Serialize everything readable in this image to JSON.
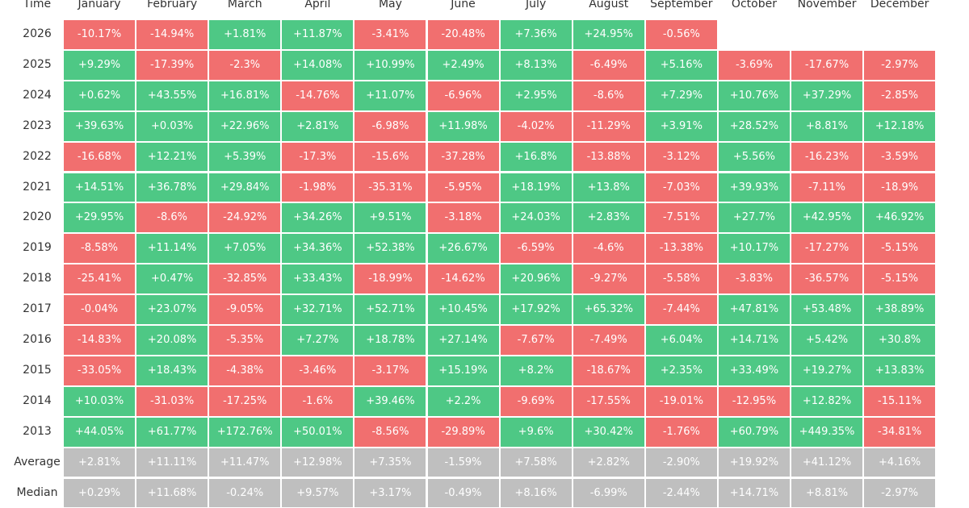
{
  "colors": {
    "positive": "#4ec885",
    "negative": "#f16f6f",
    "summary": "#bfbfbf"
  },
  "chart_data": {
    "type": "table",
    "row_header_label": "Time",
    "columns": [
      "January",
      "February",
      "March",
      "April",
      "May",
      "June",
      "July",
      "August",
      "September",
      "October",
      "November",
      "December"
    ],
    "rows": [
      {
        "label": "2026",
        "kind": "year",
        "values": [
          "-10.17%",
          "-14.94%",
          "+1.81%",
          "+11.87%",
          "-3.41%",
          "-20.48%",
          "+7.36%",
          "+24.95%",
          "-0.56%",
          null,
          null,
          null
        ]
      },
      {
        "label": "2025",
        "kind": "year",
        "values": [
          "+9.29%",
          "-17.39%",
          "-2.3%",
          "+14.08%",
          "+10.99%",
          "+2.49%",
          "+8.13%",
          "-6.49%",
          "+5.16%",
          "-3.69%",
          "-17.67%",
          "-2.97%"
        ]
      },
      {
        "label": "2024",
        "kind": "year",
        "values": [
          "+0.62%",
          "+43.55%",
          "+16.81%",
          "-14.76%",
          "+11.07%",
          "-6.96%",
          "+2.95%",
          "-8.6%",
          "+7.29%",
          "+10.76%",
          "+37.29%",
          "-2.85%"
        ]
      },
      {
        "label": "2023",
        "kind": "year",
        "values": [
          "+39.63%",
          "+0.03%",
          "+22.96%",
          "+2.81%",
          "-6.98%",
          "+11.98%",
          "-4.02%",
          "-11.29%",
          "+3.91%",
          "+28.52%",
          "+8.81%",
          "+12.18%"
        ]
      },
      {
        "label": "2022",
        "kind": "year",
        "values": [
          "-16.68%",
          "+12.21%",
          "+5.39%",
          "-17.3%",
          "-15.6%",
          "-37.28%",
          "+16.8%",
          "-13.88%",
          "-3.12%",
          "+5.56%",
          "-16.23%",
          "-3.59%"
        ]
      },
      {
        "label": "2021",
        "kind": "year",
        "values": [
          "+14.51%",
          "+36.78%",
          "+29.84%",
          "-1.98%",
          "-35.31%",
          "-5.95%",
          "+18.19%",
          "+13.8%",
          "-7.03%",
          "+39.93%",
          "-7.11%",
          "-18.9%"
        ]
      },
      {
        "label": "2020",
        "kind": "year",
        "values": [
          "+29.95%",
          "-8.6%",
          "-24.92%",
          "+34.26%",
          "+9.51%",
          "-3.18%",
          "+24.03%",
          "+2.83%",
          "-7.51%",
          "+27.7%",
          "+42.95%",
          "+46.92%"
        ]
      },
      {
        "label": "2019",
        "kind": "year",
        "values": [
          "-8.58%",
          "+11.14%",
          "+7.05%",
          "+34.36%",
          "+52.38%",
          "+26.67%",
          "-6.59%",
          "-4.6%",
          "-13.38%",
          "+10.17%",
          "-17.27%",
          "-5.15%"
        ]
      },
      {
        "label": "2018",
        "kind": "year",
        "values": [
          "-25.41%",
          "+0.47%",
          "-32.85%",
          "+33.43%",
          "-18.99%",
          "-14.62%",
          "+20.96%",
          "-9.27%",
          "-5.58%",
          "-3.83%",
          "-36.57%",
          "-5.15%"
        ]
      },
      {
        "label": "2017",
        "kind": "year",
        "values": [
          "-0.04%",
          "+23.07%",
          "-9.05%",
          "+32.71%",
          "+52.71%",
          "+10.45%",
          "+17.92%",
          "+65.32%",
          "-7.44%",
          "+47.81%",
          "+53.48%",
          "+38.89%"
        ]
      },
      {
        "label": "2016",
        "kind": "year",
        "values": [
          "-14.83%",
          "+20.08%",
          "-5.35%",
          "+7.27%",
          "+18.78%",
          "+27.14%",
          "-7.67%",
          "-7.49%",
          "+6.04%",
          "+14.71%",
          "+5.42%",
          "+30.8%"
        ]
      },
      {
        "label": "2015",
        "kind": "year",
        "values": [
          "-33.05%",
          "+18.43%",
          "-4.38%",
          "-3.46%",
          "-3.17%",
          "+15.19%",
          "+8.2%",
          "-18.67%",
          "+2.35%",
          "+33.49%",
          "+19.27%",
          "+13.83%"
        ]
      },
      {
        "label": "2014",
        "kind": "year",
        "values": [
          "+10.03%",
          "-31.03%",
          "-17.25%",
          "-1.6%",
          "+39.46%",
          "+2.2%",
          "-9.69%",
          "-17.55%",
          "-19.01%",
          "-12.95%",
          "+12.82%",
          "-15.11%"
        ]
      },
      {
        "label": "2013",
        "kind": "year",
        "values": [
          "+44.05%",
          "+61.77%",
          "+172.76%",
          "+50.01%",
          "-8.56%",
          "-29.89%",
          "+9.6%",
          "+30.42%",
          "-1.76%",
          "+60.79%",
          "+449.35%",
          "-34.81%"
        ]
      },
      {
        "label": "Average",
        "kind": "summary",
        "values": [
          "+2.81%",
          "+11.11%",
          "+11.47%",
          "+12.98%",
          "+7.35%",
          "-1.59%",
          "+7.58%",
          "+2.82%",
          "-2.90%",
          "+19.92%",
          "+41.12%",
          "+4.16%"
        ]
      },
      {
        "label": "Median",
        "kind": "summary",
        "values": [
          "+0.29%",
          "+11.68%",
          "-0.24%",
          "+9.57%",
          "+3.17%",
          "-0.49%",
          "+8.16%",
          "-6.99%",
          "-2.44%",
          "+14.71%",
          "+8.81%",
          "-2.97%"
        ]
      }
    ]
  }
}
